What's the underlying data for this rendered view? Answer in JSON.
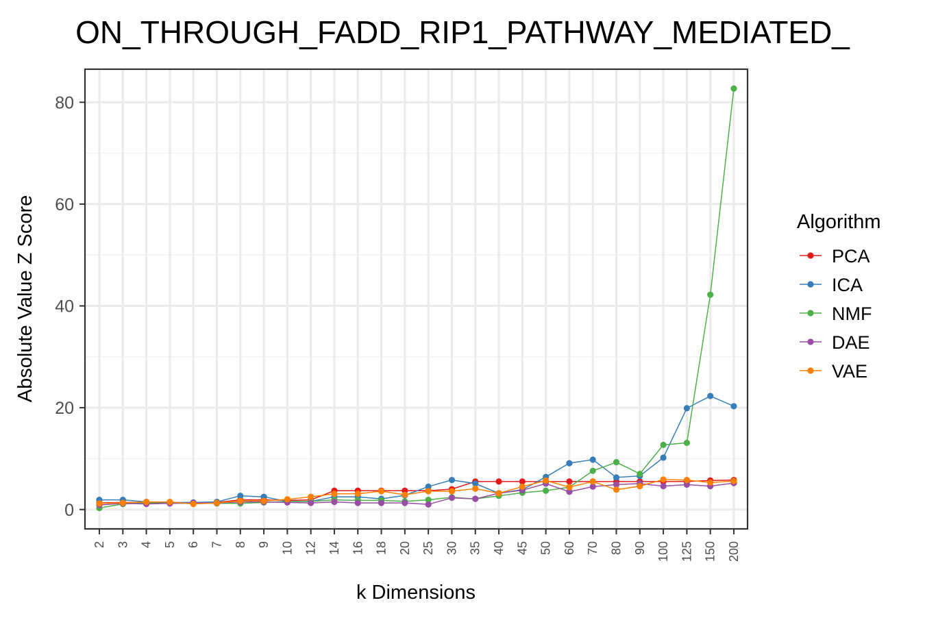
{
  "chart_data": {
    "type": "line",
    "title": "ON_THROUGH_FADD_RIP1_PATHWAY_MEDIATED_",
    "xlabel": "k Dimensions",
    "ylabel": "Absolute Value Z Score",
    "categories": [
      "2",
      "3",
      "4",
      "5",
      "6",
      "7",
      "8",
      "9",
      "10",
      "12",
      "14",
      "16",
      "18",
      "20",
      "25",
      "30",
      "35",
      "40",
      "45",
      "50",
      "60",
      "70",
      "80",
      "90",
      "100",
      "125",
      "150",
      "200"
    ],
    "ylim": [
      -3.8,
      86.5
    ],
    "yticks": [
      0,
      20,
      40,
      60,
      80
    ],
    "grid": true,
    "legend": {
      "title": "Algorithm",
      "position": "right"
    },
    "series": [
      {
        "name": "PCA",
        "color": "#E41A1C",
        "values": [
          1.3,
          1.4,
          1.4,
          1.4,
          1.3,
          1.4,
          1.9,
          1.9,
          1.8,
          1.9,
          3.7,
          3.7,
          3.7,
          3.7,
          3.7,
          4.0,
          5.5,
          5.5,
          5.5,
          5.5,
          5.5,
          5.5,
          5.5,
          5.5,
          5.5,
          5.5,
          5.7,
          5.8
        ]
      },
      {
        "name": "ICA",
        "color": "#377EB8",
        "values": [
          1.9,
          1.9,
          1.5,
          1.4,
          1.4,
          1.5,
          2.7,
          2.5,
          1.6,
          1.6,
          2.5,
          2.5,
          2.1,
          2.8,
          4.5,
          5.8,
          5.1,
          3.2,
          3.9,
          6.4,
          9.1,
          9.8,
          6.3,
          6.6,
          10.2,
          19.9,
          22.3,
          20.3
        ]
      },
      {
        "name": "NMF",
        "color": "#4DAF4A",
        "values": [
          0.3,
          1.1,
          1.3,
          1.2,
          1.2,
          1.2,
          1.2,
          1.4,
          1.6,
          1.6,
          1.9,
          1.8,
          1.8,
          1.6,
          1.9,
          2.4,
          2.1,
          2.7,
          3.3,
          3.7,
          4.4,
          7.6,
          9.3,
          7.0,
          12.7,
          13.1,
          42.2,
          82.7
        ]
      },
      {
        "name": "DAE",
        "color": "#984EA3",
        "values": [
          0.9,
          1.2,
          1.1,
          1.2,
          1.3,
          1.3,
          1.5,
          1.5,
          1.4,
          1.3,
          1.5,
          1.3,
          1.3,
          1.3,
          1.0,
          2.3,
          2.1,
          3.2,
          3.8,
          5.1,
          3.5,
          4.5,
          4.9,
          5.1,
          4.6,
          4.9,
          4.6,
          5.2
        ]
      },
      {
        "name": "VAE",
        "color": "#FF7F00",
        "values": [
          1.2,
          1.3,
          1.5,
          1.5,
          1.1,
          1.3,
          1.7,
          1.7,
          2.0,
          2.5,
          3.1,
          3.1,
          3.6,
          2.9,
          3.6,
          3.6,
          4.1,
          3.2,
          4.5,
          5.7,
          4.4,
          5.5,
          3.9,
          4.6,
          5.9,
          5.8,
          5.3,
          5.6
        ]
      }
    ]
  }
}
